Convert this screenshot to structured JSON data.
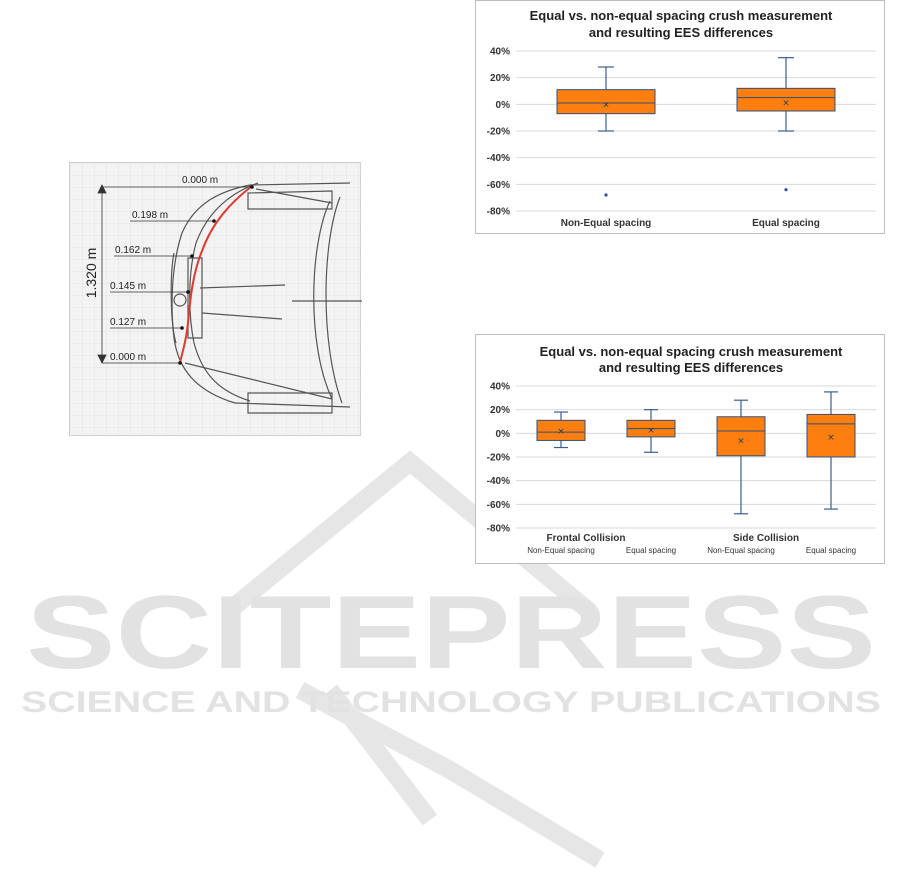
{
  "watermark": {
    "title": "SCITEPRESS",
    "subtitle": "SCIENCE AND TECHNOLOGY PUBLICATIONS"
  },
  "figure": {
    "total_label": "1.320 m",
    "station_labels": [
      "0.000 m",
      "0.198 m",
      "0.162 m",
      "0.145 m",
      "0.127 m",
      "0.000 m"
    ]
  },
  "colors": {
    "box_fill": "#ff7f0e",
    "box_stroke": "#2f4f7f",
    "whisker": "#3b5e8c",
    "grid": "#d9d9d9",
    "crush_profile": "#e03a2e"
  },
  "chart_data": [
    {
      "type": "box",
      "title_lines": [
        "Equal vs. non-equal spacing crush measurement",
        "and resulting EES differences"
      ],
      "ylim": [
        -80,
        40
      ],
      "yticks": [
        40,
        20,
        0,
        -20,
        -40,
        -60,
        -80
      ],
      "tick_suffix": "%",
      "categories": [
        "Non-Equal spacing",
        "Equal spacing"
      ],
      "boxes": [
        {
          "category": "Non-Equal spacing",
          "min": -20,
          "q1": -7,
          "median": 1,
          "q3": 11,
          "max": 28,
          "mean": 0,
          "outliers": [
            -68
          ]
        },
        {
          "category": "Equal spacing",
          "min": -20,
          "q1": -5,
          "median": 5,
          "q3": 12,
          "max": 35,
          "mean": 1.5,
          "outliers": [
            -64
          ]
        }
      ]
    },
    {
      "type": "box",
      "title_lines": [
        "Equal vs. non-equal spacing crush measurement",
        "and resulting EES differences"
      ],
      "ylim": [
        -80,
        40
      ],
      "yticks": [
        40,
        20,
        0,
        -20,
        -40,
        -60,
        -80
      ],
      "tick_suffix": "%",
      "groups": [
        "Frontal Collision",
        "Side Collision"
      ],
      "categories": [
        "Non-Equal spacing",
        "Equal spacing",
        "Non-Equal spacing",
        "Equal spacing"
      ],
      "boxes": [
        {
          "group": "Frontal Collision",
          "category": "Non-Equal spacing",
          "min": -12,
          "q1": -6,
          "median": 1,
          "q3": 11,
          "max": 18,
          "mean": 2,
          "outliers": []
        },
        {
          "group": "Frontal Collision",
          "category": "Equal spacing",
          "min": -16,
          "q1": -3,
          "median": 4,
          "q3": 11,
          "max": 20,
          "mean": 3,
          "outliers": []
        },
        {
          "group": "Side Collision",
          "category": "Non-Equal spacing",
          "min": -68,
          "q1": -19,
          "median": 2,
          "q3": 14,
          "max": 28,
          "mean": -6,
          "outliers": []
        },
        {
          "group": "Side Collision",
          "category": "Equal spacing",
          "min": -64,
          "q1": -20,
          "median": 8,
          "q3": 16,
          "max": 35,
          "mean": -3,
          "outliers": []
        }
      ]
    }
  ]
}
